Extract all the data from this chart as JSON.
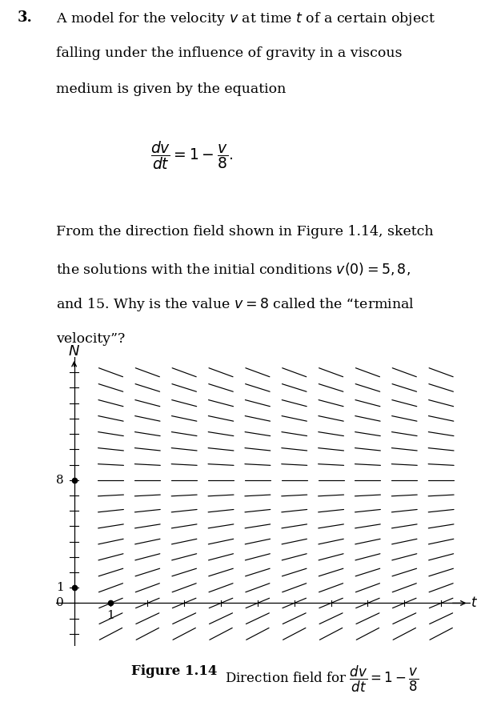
{
  "title_number": "3.",
  "problem_text_lines": [
    "A model for the velocity $v$ at time $t$ of a certain object",
    "falling under the influence of gravity in a viscous",
    "medium is given by the equation"
  ],
  "equation": "\\dfrac{dv}{dt} = 1 - \\dfrac{v}{8}.",
  "body_text_lines": [
    "From the direction field shown in Figure 1.14, sketch",
    "the solutions with the initial conditions $v(0) = 5, 8,$",
    "and 15. Why is the value $v = 8$ called the “terminal",
    "velocity”?"
  ],
  "figure_caption_bold": "Figure 1.14",
  "figure_caption_rest": " Direction field for ",
  "caption_eq": "\\dfrac{dv}{dt} = 1 - \\dfrac{v}{8}",
  "t_min": 0,
  "t_max": 10,
  "v_min": -2,
  "v_max": 15,
  "terminal_velocity": 8,
  "background_color": "#ffffff",
  "text_color": "#000000",
  "slope_line_color": "#000000"
}
